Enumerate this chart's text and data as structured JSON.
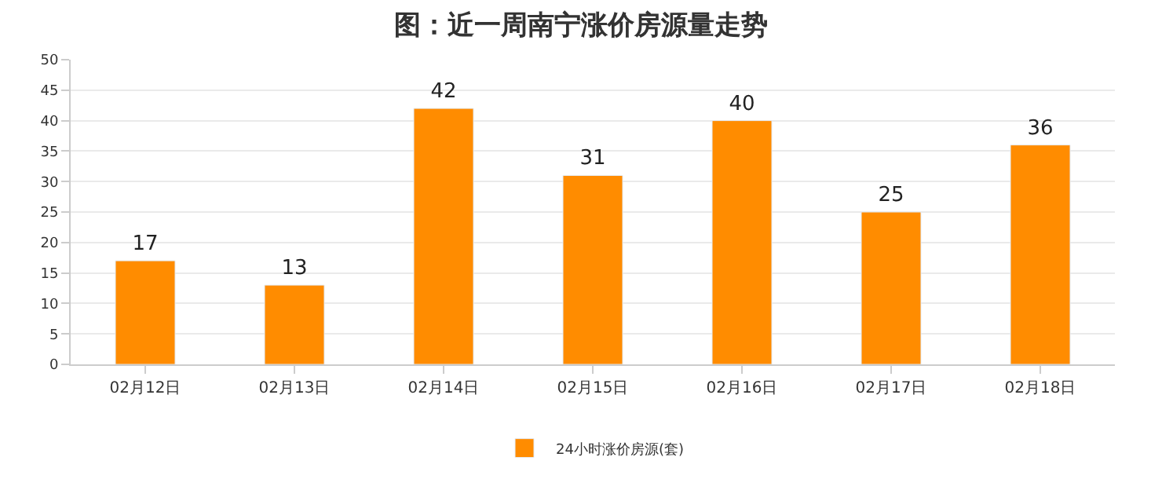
{
  "chart_data": {
    "type": "bar",
    "title": "图：近一周南宁涨价房源量走势",
    "categories": [
      "02月12日",
      "02月13日",
      "02月14日",
      "02月15日",
      "02月16日",
      "02月17日",
      "02月18日"
    ],
    "series": [
      {
        "name": "24小时涨价房源(套)",
        "color": "#ff8c00",
        "values": [
          17,
          13,
          42,
          31,
          40,
          25,
          36
        ]
      }
    ],
    "ylim": [
      0,
      50
    ],
    "yticks": [
      0,
      5,
      10,
      15,
      20,
      25,
      30,
      35,
      40,
      45,
      50
    ],
    "grid": "y",
    "legend": "bottom",
    "data_labels": true
  }
}
